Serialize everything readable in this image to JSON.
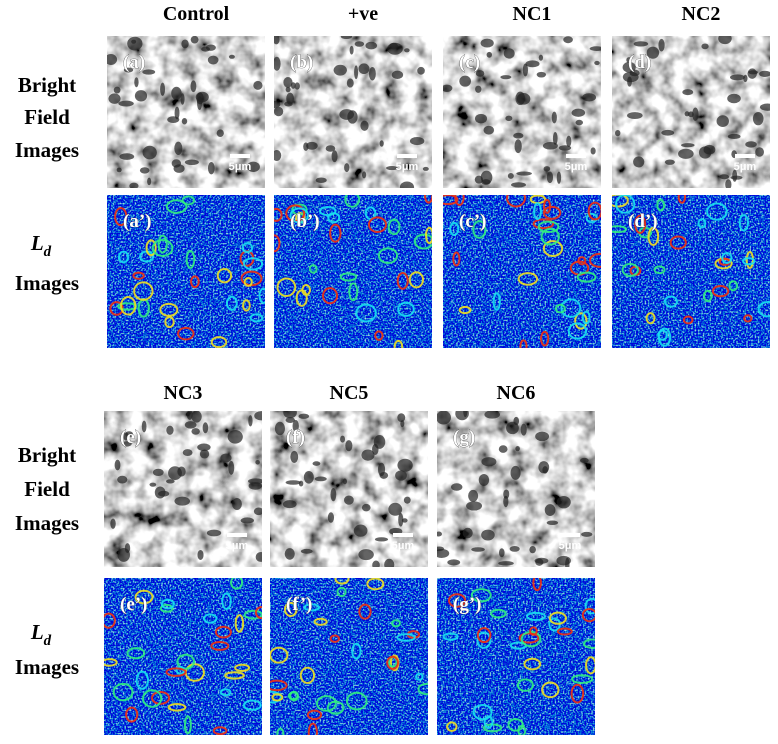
{
  "columns_top": [
    "Control",
    "+ve",
    "NC1",
    "NC2"
  ],
  "columns_bottom": [
    "NC3",
    "NC5",
    "NC6"
  ],
  "row_labels": {
    "bright_field": [
      "Bright",
      "Field",
      "Images"
    ],
    "ld": {
      "symbol": "L",
      "subscript": "d",
      "word": "Images"
    }
  },
  "panels": {
    "bright": [
      "(a)",
      "(b)",
      "(c)",
      "(d)",
      "(e)",
      "(f)",
      "(g)"
    ],
    "ld": [
      "(a’)",
      "(b’)",
      "(c’)",
      "(d’)",
      "(e’)",
      "(f’)",
      "(g’)"
    ]
  },
  "scale_bar": "5μm"
}
